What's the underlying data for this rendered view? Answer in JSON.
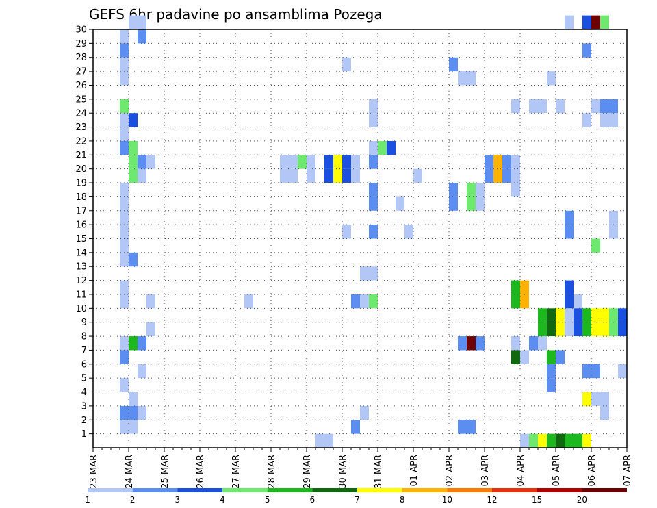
{
  "chart_data": {
    "type": "heatmap",
    "title": "GEFS 6hr padavine po ansamblima Pozega",
    "x_labels": [
      "23 MAR",
      "24 MAR",
      "25 MAR",
      "26 MAR",
      "27 MAR",
      "28 MAR",
      "29 MAR",
      "30 MAR",
      "31 MAR",
      "01 APR",
      "02 APR",
      "03 APR",
      "04 APR",
      "05 APR",
      "06 APR",
      "07 APR"
    ],
    "y_labels": [
      "1",
      "2",
      "3",
      "4",
      "5",
      "6",
      "7",
      "8",
      "9",
      "10",
      "11",
      "12",
      "13",
      "14",
      "15",
      "16",
      "17",
      "18",
      "19",
      "20",
      "21",
      "22",
      "23",
      "24",
      "25",
      "26",
      "27",
      "28",
      "29",
      "30"
    ],
    "x_range_steps_6h": [
      0,
      60
    ],
    "y_range": [
      0,
      30
    ],
    "grid": true,
    "colorbar": {
      "position": "bottom",
      "levels": [
        "1",
        "2",
        "3",
        "4",
        "5",
        "6",
        "7",
        "8",
        "10",
        "12",
        "15",
        "20"
      ],
      "colors": [
        "#b3c7f7",
        "#5b8ef0",
        "#1a4fe0",
        "#6ee86e",
        "#1db81d",
        "#0f6a0f",
        "#ffff00",
        "#ffb300",
        "#ff7a00",
        "#e8300c",
        "#b00000",
        "#6e0000"
      ]
    },
    "cells": [
      [
        4,
        30,
        0
      ],
      [
        5,
        30,
        0
      ],
      [
        3,
        29,
        0
      ],
      [
        5,
        29,
        1
      ],
      [
        3,
        28,
        1
      ],
      [
        3,
        27,
        0
      ],
      [
        3,
        26,
        0
      ],
      [
        3,
        24,
        3
      ],
      [
        3,
        23,
        0
      ],
      [
        4,
        23,
        2
      ],
      [
        3,
        22,
        0
      ],
      [
        3,
        21,
        1
      ],
      [
        4,
        21,
        3
      ],
      [
        4,
        20,
        3
      ],
      [
        5,
        20,
        1
      ],
      [
        6,
        20,
        0
      ],
      [
        4,
        19,
        3
      ],
      [
        5,
        19,
        0
      ],
      [
        3,
        18,
        0
      ],
      [
        3,
        17,
        0
      ],
      [
        3,
        16,
        0
      ],
      [
        3,
        15,
        0
      ],
      [
        3,
        14,
        0
      ],
      [
        3,
        13,
        0
      ],
      [
        4,
        13,
        1
      ],
      [
        3,
        11,
        0
      ],
      [
        3,
        10,
        0
      ],
      [
        6,
        10,
        0
      ],
      [
        6,
        8,
        0
      ],
      [
        3,
        7,
        0
      ],
      [
        4,
        7,
        4
      ],
      [
        5,
        7,
        1
      ],
      [
        3,
        6,
        1
      ],
      [
        5,
        5,
        0
      ],
      [
        3,
        4,
        0
      ],
      [
        4,
        3,
        0
      ],
      [
        3,
        2,
        1
      ],
      [
        4,
        2,
        1
      ],
      [
        5,
        2,
        0
      ],
      [
        3,
        1,
        0
      ],
      [
        4,
        1,
        0
      ],
      [
        21,
        20,
        0
      ],
      [
        22,
        20,
        0
      ],
      [
        23,
        20,
        3
      ],
      [
        24,
        20,
        0
      ],
      [
        21,
        19,
        0
      ],
      [
        22,
        19,
        0
      ],
      [
        24,
        19,
        0
      ],
      [
        17,
        10,
        0
      ],
      [
        26,
        20,
        2
      ],
      [
        27,
        20,
        6
      ],
      [
        28,
        20,
        2
      ],
      [
        29,
        20,
        0
      ],
      [
        26,
        19,
        2
      ],
      [
        27,
        19,
        6
      ],
      [
        28,
        19,
        2
      ],
      [
        29,
        19,
        0
      ],
      [
        28,
        27,
        0
      ],
      [
        31,
        24,
        0
      ],
      [
        31,
        23,
        0
      ],
      [
        31,
        21,
        0
      ],
      [
        32,
        21,
        3
      ],
      [
        33,
        21,
        2
      ],
      [
        31,
        20,
        1
      ],
      [
        31,
        18,
        1
      ],
      [
        31,
        17,
        1
      ],
      [
        34,
        17,
        0
      ],
      [
        28,
        15,
        0
      ],
      [
        31,
        15,
        1
      ],
      [
        30,
        12,
        0
      ],
      [
        31,
        12,
        0
      ],
      [
        29,
        10,
        1
      ],
      [
        30,
        10,
        0
      ],
      [
        31,
        10,
        3
      ],
      [
        29,
        1,
        1
      ],
      [
        30,
        2,
        0
      ],
      [
        26,
        0,
        0
      ],
      [
        25,
        0,
        0
      ],
      [
        36,
        19,
        0
      ],
      [
        40,
        27,
        1
      ],
      [
        41,
        26,
        0
      ],
      [
        42,
        26,
        0
      ],
      [
        40,
        18,
        1
      ],
      [
        42,
        18,
        3
      ],
      [
        43,
        18,
        0
      ],
      [
        40,
        17,
        1
      ],
      [
        42,
        17,
        3
      ],
      [
        43,
        17,
        0
      ],
      [
        35,
        15,
        0
      ],
      [
        41,
        7,
        1
      ],
      [
        42,
        7,
        11
      ],
      [
        43,
        7,
        1
      ],
      [
        41,
        1,
        1
      ],
      [
        42,
        1,
        1
      ],
      [
        44,
        20,
        1
      ],
      [
        45,
        20,
        7
      ],
      [
        46,
        20,
        1
      ],
      [
        47,
        20,
        0
      ],
      [
        44,
        19,
        1
      ],
      [
        45,
        19,
        7
      ],
      [
        46,
        19,
        1
      ],
      [
        47,
        19,
        0
      ],
      [
        47,
        24,
        0
      ],
      [
        49,
        24,
        0
      ],
      [
        50,
        24,
        0
      ],
      [
        52,
        24,
        0
      ],
      [
        55,
        23,
        0
      ],
      [
        56,
        24,
        0
      ],
      [
        57,
        24,
        1
      ],
      [
        57,
        23,
        0
      ],
      [
        58,
        23,
        0
      ],
      [
        58,
        24,
        1
      ],
      [
        53,
        30,
        0
      ],
      [
        55,
        30,
        2
      ],
      [
        56,
        30,
        11
      ],
      [
        57,
        30,
        3
      ],
      [
        55,
        28,
        1
      ],
      [
        51,
        26,
        0
      ],
      [
        47,
        18,
        0
      ],
      [
        47,
        11,
        4
      ],
      [
        48,
        11,
        7
      ],
      [
        47,
        10,
        4
      ],
      [
        48,
        10,
        7
      ],
      [
        47,
        7,
        0
      ],
      [
        47,
        6,
        5
      ],
      [
        48,
        6,
        0
      ],
      [
        49,
        7,
        1
      ],
      [
        50,
        7,
        0
      ],
      [
        51,
        6,
        4
      ],
      [
        52,
        6,
        1
      ],
      [
        51,
        5,
        1
      ],
      [
        51,
        4,
        1
      ],
      [
        53,
        16,
        1
      ],
      [
        53,
        15,
        1
      ],
      [
        56,
        14,
        3
      ],
      [
        58,
        16,
        0
      ],
      [
        58,
        15,
        0
      ],
      [
        53,
        11,
        2
      ],
      [
        54,
        10,
        0
      ],
      [
        53,
        10,
        2
      ],
      [
        50,
        9,
        4
      ],
      [
        51,
        9,
        5
      ],
      [
        52,
        9,
        6
      ],
      [
        53,
        9,
        0
      ],
      [
        54,
        9,
        2
      ],
      [
        55,
        9,
        4
      ],
      [
        56,
        9,
        6
      ],
      [
        57,
        9,
        6
      ],
      [
        58,
        9,
        3
      ],
      [
        59,
        9,
        2
      ],
      [
        50,
        8,
        4
      ],
      [
        51,
        8,
        5
      ],
      [
        52,
        8,
        6
      ],
      [
        53,
        8,
        0
      ],
      [
        54,
        8,
        2
      ],
      [
        55,
        8,
        4
      ],
      [
        56,
        8,
        6
      ],
      [
        57,
        8,
        6
      ],
      [
        58,
        8,
        3
      ],
      [
        59,
        8,
        2
      ],
      [
        55,
        5,
        1
      ],
      [
        56,
        5,
        1
      ],
      [
        59,
        5,
        0
      ],
      [
        55,
        3,
        6
      ],
      [
        56,
        3,
        0
      ],
      [
        57,
        3,
        0
      ],
      [
        57,
        2,
        0
      ],
      [
        48,
        0,
        0
      ],
      [
        49,
        0,
        3
      ],
      [
        50,
        0,
        6
      ],
      [
        51,
        0,
        4
      ],
      [
        52,
        0,
        5
      ],
      [
        53,
        0,
        4
      ],
      [
        54,
        0,
        4
      ],
      [
        55,
        0,
        6
      ]
    ]
  }
}
